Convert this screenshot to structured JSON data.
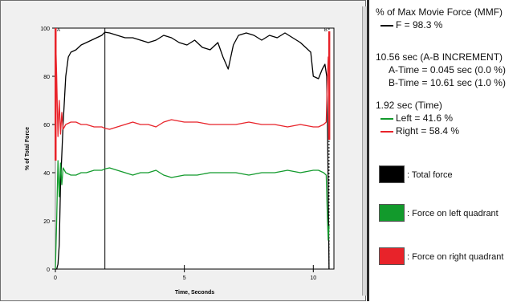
{
  "chart_data": {
    "type": "line",
    "xlabel": "Time, Seconds",
    "ylabel": "% of Total Force",
    "xlim": [
      0,
      10.8
    ],
    "ylim": [
      0,
      100
    ],
    "xticks": [
      0,
      5,
      10
    ],
    "yticks": [
      0,
      20,
      40,
      60,
      80,
      100
    ],
    "cursor_labels": [
      "A",
      "B"
    ],
    "cursor_b_x": 10.61,
    "time_cursor_x": 1.92,
    "series": [
      {
        "name": "Total force",
        "color": "#000000",
        "x": [
          0,
          0.05,
          0.1,
          0.15,
          0.2,
          0.3,
          0.4,
          0.5,
          0.6,
          0.8,
          1.0,
          1.2,
          1.4,
          1.6,
          1.8,
          1.92,
          2.1,
          2.4,
          2.7,
          3.0,
          3.3,
          3.6,
          3.9,
          4.2,
          4.5,
          4.8,
          5.1,
          5.4,
          5.7,
          6.0,
          6.3,
          6.5,
          6.7,
          6.9,
          7.1,
          7.4,
          7.7,
          8.0,
          8.3,
          8.6,
          8.9,
          9.2,
          9.5,
          9.7,
          9.9,
          10.0,
          10.2,
          10.35,
          10.45,
          10.52,
          10.55,
          10.6,
          10.61
        ],
        "values": [
          0,
          0,
          2,
          10,
          35,
          60,
          80,
          88,
          90,
          91,
          93,
          94,
          95,
          96,
          97,
          98.3,
          98,
          97,
          96,
          96,
          95,
          94,
          95,
          97,
          96,
          94,
          93,
          95,
          92,
          91,
          94,
          88,
          83,
          93,
          97,
          98,
          97,
          95,
          97,
          96,
          98,
          96,
          94,
          92,
          90,
          80,
          79,
          83,
          85,
          80,
          60,
          10,
          0
        ]
      },
      {
        "name": "Force on left quadrant",
        "color": "#129a2c",
        "x": [
          0,
          0.05,
          0.1,
          0.15,
          0.2,
          0.25,
          0.3,
          0.4,
          0.6,
          0.8,
          1.0,
          1.2,
          1.5,
          1.8,
          1.92,
          2.1,
          2.4,
          2.7,
          3.0,
          3.3,
          3.6,
          3.9,
          4.2,
          4.5,
          5.0,
          5.5,
          6.0,
          6.5,
          7.0,
          7.5,
          8.0,
          8.5,
          9.0,
          9.5,
          10.0,
          10.2,
          10.4,
          10.5,
          10.55,
          10.58,
          10.61
        ],
        "values": [
          0,
          20,
          45,
          30,
          44,
          35,
          42,
          40,
          39,
          39,
          40,
          40,
          41,
          41,
          41.6,
          42,
          41,
          40,
          39,
          40,
          40,
          41,
          39,
          38,
          39,
          39,
          40,
          40,
          40,
          39,
          40,
          40,
          41,
          40,
          41,
          41,
          40,
          39,
          20,
          12,
          18
        ]
      },
      {
        "name": "Force on right quadrant",
        "color": "#e8232a",
        "x": [
          0,
          0.05,
          0.1,
          0.15,
          0.2,
          0.25,
          0.3,
          0.4,
          0.6,
          0.8,
          1.0,
          1.2,
          1.5,
          1.8,
          1.92,
          2.1,
          2.4,
          2.7,
          3.0,
          3.3,
          3.6,
          3.9,
          4.2,
          4.5,
          5.0,
          5.5,
          6.0,
          6.5,
          7.0,
          7.5,
          8.0,
          8.5,
          9.0,
          9.5,
          10.0,
          10.2,
          10.4,
          10.5,
          10.55,
          10.58,
          10.61
        ],
        "values": [
          100,
          80,
          55,
          70,
          56,
          65,
          58,
          60,
          61,
          61,
          60,
          60,
          59,
          59,
          58.4,
          58,
          59,
          60,
          61,
          60,
          60,
          59,
          61,
          62,
          61,
          61,
          60,
          60,
          60,
          61,
          60,
          60,
          59,
          60,
          59,
          59,
          60,
          61,
          80,
          88,
          82
        ]
      }
    ]
  },
  "info": {
    "line1": "% of Max Movie Force (MMF)",
    "line2": "F = 98.3 %",
    "line3": "10.56 sec (A-B INCREMENT)",
    "line4": "A-Time = 0.045 sec (0.0 %)",
    "line5": "B-Time = 10.61 sec (1.0 %)",
    "line6": "1.92 sec (Time)",
    "line7": "Left = 41.6 %",
    "line8": "Right = 58.4 %"
  },
  "legend": {
    "total": ": Total force",
    "left": ": Force on left quadrant",
    "right": ": Force on right quadrant"
  },
  "colors": {
    "total": "#000000",
    "left": "#129a2c",
    "right": "#e8232a"
  }
}
